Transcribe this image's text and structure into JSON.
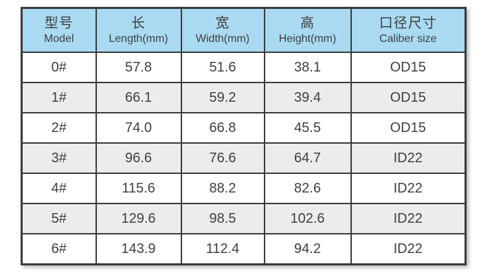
{
  "chart_data": {
    "type": "table",
    "columns": [
      {
        "zh": "型号",
        "en": "Model"
      },
      {
        "zh": "长",
        "en": "Length(mm)"
      },
      {
        "zh": "宽",
        "en": "Width(mm)"
      },
      {
        "zh": "高",
        "en": "Height(mm)"
      },
      {
        "zh": "口径尺寸",
        "en": "Caliber size"
      }
    ],
    "rows": [
      [
        "0#",
        "57.8",
        "51.6",
        "38.1",
        "OD15"
      ],
      [
        "1#",
        "66.1",
        "59.2",
        "39.4",
        "OD15"
      ],
      [
        "2#",
        "74.0",
        "66.8",
        "45.5",
        "OD15"
      ],
      [
        "3#",
        "96.6",
        "76.6",
        "64.7",
        "ID22"
      ],
      [
        "4#",
        "115.6",
        "88.2",
        "82.6",
        "ID22"
      ],
      [
        "5#",
        "129.6",
        "98.5",
        "102.6",
        "ID22"
      ],
      [
        "6#",
        "143.9",
        "112.4",
        "94.2",
        "ID22"
      ]
    ]
  },
  "colors": {
    "header_bg": "#a9daf2",
    "row_bg": "#ffffff",
    "row_alt_bg": "#ececec",
    "border": "#3a3a3a",
    "text": "#3f3f3f"
  }
}
